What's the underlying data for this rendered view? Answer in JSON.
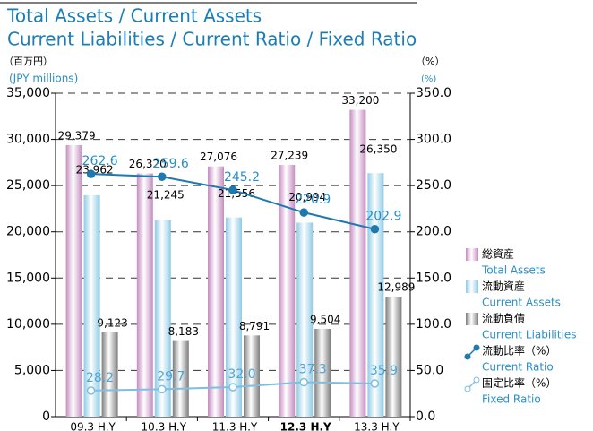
{
  "chart_data": {
    "type": "bar",
    "title": "Total Assets / Current Assets",
    "subtitle": "Current Liabilities / Current Ratio / Fixed Ratio",
    "y_unit_ja": "（百万円）",
    "y_unit_en": "(JPY millions)",
    "y2_unit_ja": "（%）",
    "y2_unit_en": "(%)",
    "categories": [
      "09.3 H.Y",
      "10.3 H.Y",
      "11.3 H.Y",
      "12.3 H.Y",
      "13.3 H.Y"
    ],
    "bold_category": "12.3 H.Y",
    "ylim": [
      0,
      35000
    ],
    "yticks": [
      0,
      {
        "value": 5000,
        "label": "5,000"
      },
      {
        "value": 10000,
        "label": "10,000"
      },
      {
        "value": 15000,
        "label": "15,000"
      },
      {
        "value": 20000,
        "label": "20,000"
      },
      {
        "value": 25000,
        "label": "25,000"
      },
      {
        "value": 30000,
        "label": "30,000"
      },
      {
        "value": 35000,
        "label": "35,000"
      }
    ],
    "y2lim": [
      0,
      350
    ],
    "y2ticks": [
      {
        "value": 0,
        "label": "0.0"
      },
      {
        "value": 50,
        "label": "50.0"
      },
      {
        "value": 100,
        "label": "100.0"
      },
      {
        "value": 150,
        "label": "150.0"
      },
      {
        "value": 200,
        "label": "200.0"
      },
      {
        "value": 250,
        "label": "250.0"
      },
      {
        "value": 300,
        "label": "300.0"
      },
      {
        "value": 350,
        "label": "350.0"
      }
    ],
    "grid": true,
    "series": [
      {
        "name": "総資産",
        "name_en": "Total Assets",
        "type": "bar",
        "color": "#c48cc0",
        "values": [
          29379,
          26320,
          27076,
          27239,
          33200
        ],
        "value_labels": [
          "29,379",
          "26,320",
          "27,076",
          "27,239",
          "33,200"
        ]
      },
      {
        "name": "流動資産",
        "name_en": "Current Assets",
        "type": "bar",
        "color": "#8fcbe6",
        "values": [
          23962,
          21245,
          21556,
          20994,
          26350
        ],
        "value_labels": [
          "23,962",
          "21,245",
          "21,556",
          "20,994",
          "26,350"
        ]
      },
      {
        "name": "流動負債",
        "name_en": "Current Liabilities",
        "type": "bar",
        "color": "#7d7d7d",
        "values": [
          9123,
          8183,
          8791,
          9504,
          12989
        ],
        "value_labels": [
          "9,123",
          "8,183",
          "8,791",
          "9,504",
          "12,989"
        ]
      },
      {
        "name": "流動比率（%）",
        "name_en": "Current Ratio",
        "type": "line",
        "axis": "y2",
        "color": "#1f78b0",
        "values": [
          262.6,
          259.6,
          245.2,
          220.9,
          202.9
        ]
      },
      {
        "name": "固定比率（%）",
        "name_en": "Fixed Ratio",
        "type": "line",
        "axis": "y2",
        "color": "#7fbedf",
        "values": [
          28.2,
          29.7,
          32.0,
          37.3,
          35.9
        ],
        "value_labels": [
          "28.2",
          "29.7",
          "32.0",
          "37.3",
          "35.9"
        ]
      }
    ]
  }
}
